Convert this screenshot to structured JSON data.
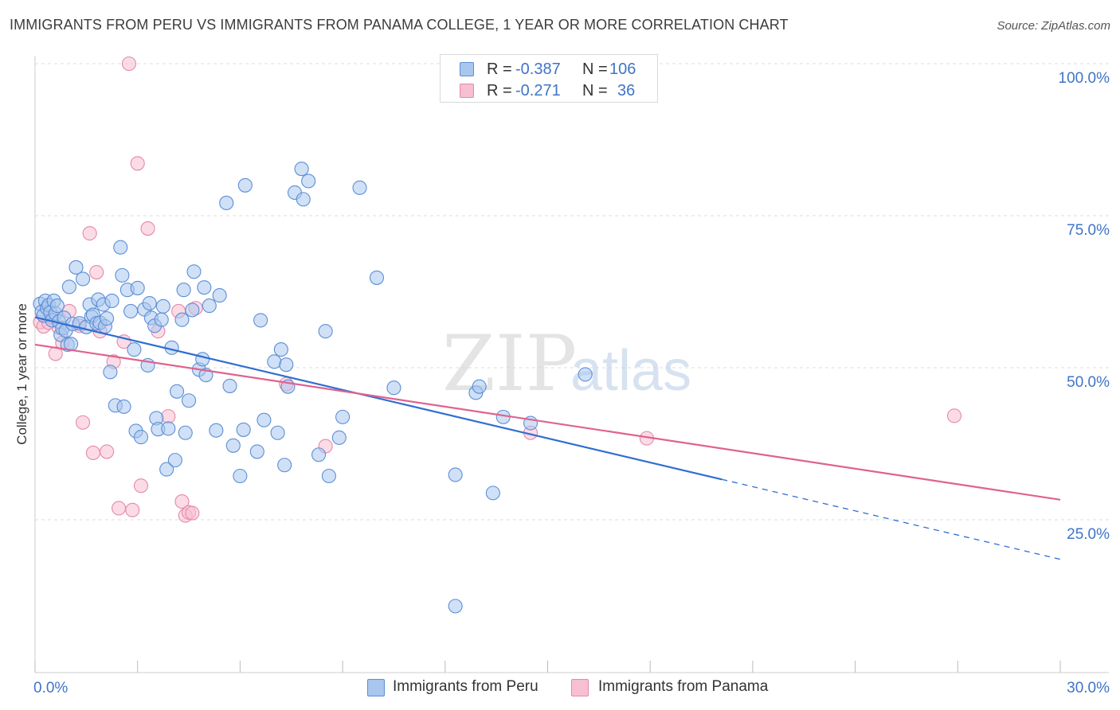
{
  "title": "IMMIGRANTS FROM PERU VS IMMIGRANTS FROM PANAMA COLLEGE, 1 YEAR OR MORE CORRELATION CHART",
  "source": "Source: ZipAtlas.com",
  "watermark": {
    "part1": "ZIP",
    "part2": "atlas"
  },
  "legend": {
    "rows": [
      {
        "r_label": "R = ",
        "r_value": "-0.387",
        "n_label": "N = ",
        "n_value": "106"
      },
      {
        "r_label": "R = ",
        "r_value": "-0.271",
        "n_label": "N = ",
        "n_value": "36"
      }
    ]
  },
  "bottom_legend": [
    {
      "label": "Immigrants from Peru"
    },
    {
      "label": "Immigrants from Panama"
    }
  ],
  "colors": {
    "peru_fill": "#a9c6ee",
    "peru_stroke": "#5b8fd6",
    "peru_line": "#2f6fd1",
    "panama_fill": "#f7bfd1",
    "panama_stroke": "#e688a8",
    "panama_line": "#e0628c",
    "tick_text": "#3f74c8",
    "grid": "#dcdcdc"
  },
  "chart_data": {
    "type": "scatter",
    "title": "IMMIGRANTS FROM PERU VS IMMIGRANTS FROM PANAMA COLLEGE, 1 YEAR OR MORE CORRELATION CHART",
    "xlabel": "",
    "ylabel": "College, 1 year or more",
    "xlim": [
      0,
      30
    ],
    "ylim": [
      3,
      104
    ],
    "x_tick_labels": [
      {
        "value": 0,
        "label": "0.0%"
      },
      {
        "value": 30,
        "label": "30.0%"
      }
    ],
    "y_tick_labels": [
      {
        "value": 25,
        "label": "25.0%"
      },
      {
        "value": 50,
        "label": "50.0%"
      },
      {
        "value": 75,
        "label": "75.0%"
      },
      {
        "value": 100,
        "label": "100.0%"
      }
    ],
    "grid": true,
    "legend_position": "top-center",
    "series": [
      {
        "name": "Immigrants from Peru",
        "color": "#5b8fd6",
        "r": -0.387,
        "n": 106,
        "trend": {
          "x0": 0,
          "y0": 58.3,
          "x1": 30,
          "y1": 18.5,
          "solid_until_x": 20.1
        },
        "points": [
          [
            0.15,
            60.5
          ],
          [
            0.2,
            59.2
          ],
          [
            0.25,
            58.6
          ],
          [
            0.3,
            61
          ],
          [
            0.35,
            59.8
          ],
          [
            0.4,
            60.3
          ],
          [
            0.45,
            59.1
          ],
          [
            0.5,
            57.8
          ],
          [
            0.55,
            61
          ],
          [
            0.6,
            58.9
          ],
          [
            0.65,
            60.2
          ],
          [
            0.7,
            57.6
          ],
          [
            0.75,
            55.4
          ],
          [
            0.8,
            56.5
          ],
          [
            0.85,
            58.2
          ],
          [
            0.9,
            56.1
          ],
          [
            0.95,
            53.8
          ],
          [
            1.0,
            63.3
          ],
          [
            1.05,
            53.9
          ],
          [
            1.1,
            57.2
          ],
          [
            1.2,
            66.5
          ],
          [
            1.3,
            57.3
          ],
          [
            1.4,
            64.6
          ],
          [
            1.5,
            56.7
          ],
          [
            1.6,
            60.4
          ],
          [
            1.65,
            58.4
          ],
          [
            1.7,
            58.7
          ],
          [
            1.8,
            57.3
          ],
          [
            1.85,
            61.2
          ],
          [
            1.9,
            57.4
          ],
          [
            2.0,
            60.4
          ],
          [
            2.05,
            56.8
          ],
          [
            2.1,
            58.1
          ],
          [
            2.2,
            49.3
          ],
          [
            2.25,
            61
          ],
          [
            2.35,
            43.8
          ],
          [
            2.5,
            69.8
          ],
          [
            2.55,
            65.2
          ],
          [
            2.6,
            43.6
          ],
          [
            2.7,
            62.8
          ],
          [
            2.8,
            59.3
          ],
          [
            2.9,
            53
          ],
          [
            2.95,
            39.6
          ],
          [
            3.0,
            63.1
          ],
          [
            3.1,
            38.6
          ],
          [
            3.2,
            59.6
          ],
          [
            3.3,
            50.4
          ],
          [
            3.35,
            60.6
          ],
          [
            3.4,
            58.2
          ],
          [
            3.5,
            56.9
          ],
          [
            3.55,
            41.7
          ],
          [
            3.6,
            39.9
          ],
          [
            3.7,
            57.9
          ],
          [
            3.75,
            60.1
          ],
          [
            3.85,
            33.3
          ],
          [
            3.9,
            40
          ],
          [
            4.0,
            53.3
          ],
          [
            4.1,
            34.8
          ],
          [
            4.15,
            46.1
          ],
          [
            4.3,
            57.9
          ],
          [
            4.35,
            62.8
          ],
          [
            4.4,
            39.3
          ],
          [
            4.5,
            44.6
          ],
          [
            4.6,
            59.5
          ],
          [
            4.65,
            65.8
          ],
          [
            4.8,
            49.7
          ],
          [
            4.9,
            51.4
          ],
          [
            4.95,
            63.2
          ],
          [
            5.0,
            48.8
          ],
          [
            5.1,
            60.2
          ],
          [
            5.3,
            39.7
          ],
          [
            5.4,
            61.9
          ],
          [
            5.6,
            77.1
          ],
          [
            5.7,
            47
          ],
          [
            5.8,
            37.2
          ],
          [
            6.0,
            32.2
          ],
          [
            6.1,
            39.8
          ],
          [
            6.15,
            80
          ],
          [
            6.5,
            36.2
          ],
          [
            6.6,
            57.8
          ],
          [
            6.7,
            41.4
          ],
          [
            7.0,
            51
          ],
          [
            7.1,
            39.3
          ],
          [
            7.2,
            53
          ],
          [
            7.3,
            34
          ],
          [
            7.35,
            50.5
          ],
          [
            7.4,
            46.9
          ],
          [
            7.6,
            78.8
          ],
          [
            7.8,
            82.7
          ],
          [
            7.85,
            77.7
          ],
          [
            8.0,
            80.7
          ],
          [
            8.3,
            35.7
          ],
          [
            8.5,
            56
          ],
          [
            8.6,
            32.2
          ],
          [
            8.9,
            38.5
          ],
          [
            9.0,
            41.9
          ],
          [
            9.5,
            79.6
          ],
          [
            10.0,
            64.8
          ],
          [
            10.5,
            46.7
          ],
          [
            12.3,
            32.4
          ],
          [
            12.9,
            45.9
          ],
          [
            13.0,
            46.9
          ],
          [
            13.4,
            29.4
          ],
          [
            13.7,
            41.9
          ],
          [
            14.5,
            40.9
          ],
          [
            16.1,
            48.9
          ],
          [
            12.3,
            10.8
          ]
        ]
      },
      {
        "name": "Immigrants from Panama",
        "color": "#e688a8",
        "r": -0.271,
        "n": 36,
        "trend": {
          "x0": 0,
          "y0": 53.8,
          "x1": 30,
          "y1": 28.3
        },
        "points": [
          [
            0.15,
            57.5
          ],
          [
            0.25,
            56.8
          ],
          [
            0.4,
            57.4
          ],
          [
            0.5,
            58.3
          ],
          [
            0.6,
            52.3
          ],
          [
            0.7,
            56.6
          ],
          [
            0.8,
            54.1
          ],
          [
            1.0,
            59.3
          ],
          [
            1.3,
            56.9
          ],
          [
            1.4,
            41
          ],
          [
            1.6,
            72.1
          ],
          [
            1.7,
            36
          ],
          [
            1.8,
            65.7
          ],
          [
            1.9,
            56
          ],
          [
            2.1,
            36.2
          ],
          [
            2.3,
            51
          ],
          [
            2.45,
            26.9
          ],
          [
            2.6,
            54.3
          ],
          [
            2.85,
            26.6
          ],
          [
            3.0,
            83.6
          ],
          [
            3.1,
            30.6
          ],
          [
            3.3,
            72.9
          ],
          [
            3.6,
            56
          ],
          [
            3.9,
            42
          ],
          [
            4.2,
            59.3
          ],
          [
            4.3,
            28
          ],
          [
            4.4,
            25.7
          ],
          [
            4.5,
            26.2
          ],
          [
            4.6,
            26.1
          ],
          [
            4.7,
            59.8
          ],
          [
            7.35,
            47.3
          ],
          [
            8.5,
            37.1
          ],
          [
            14.5,
            39.3
          ],
          [
            17.9,
            38.4
          ],
          [
            26.9,
            42.1
          ],
          [
            2.75,
            100
          ]
        ]
      }
    ]
  }
}
